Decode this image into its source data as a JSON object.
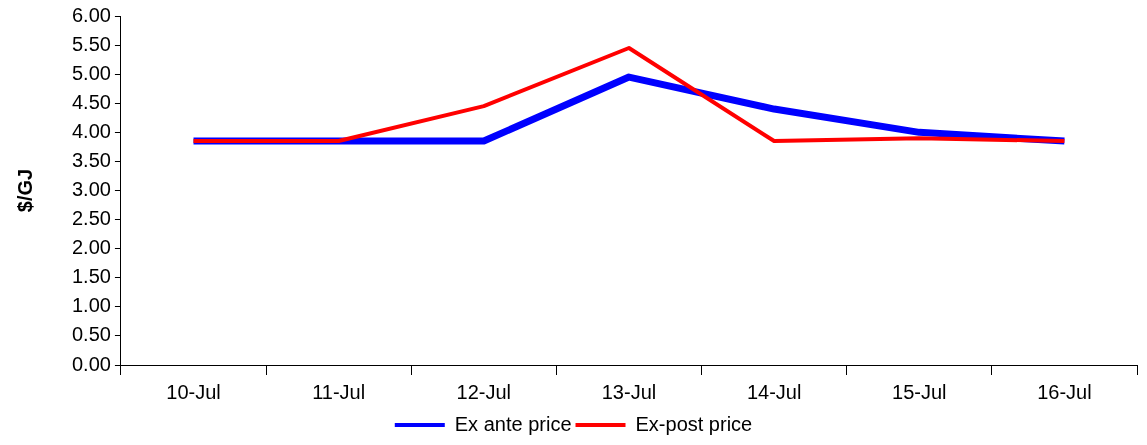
{
  "chart_data": {
    "type": "line",
    "ylabel": "$/GJ",
    "categories": [
      "10-Jul",
      "11-Jul",
      "12-Jul",
      "13-Jul",
      "14-Jul",
      "15-Jul",
      "16-Jul"
    ],
    "series": [
      {
        "name": "Ex ante price",
        "color": "#0000ff",
        "values": [
          3.85,
          3.85,
          3.85,
          4.95,
          4.4,
          4.0,
          3.85
        ]
      },
      {
        "name": "Ex-post price",
        "color": "#ff0000",
        "values": [
          3.85,
          3.85,
          4.45,
          5.45,
          3.85,
          3.9,
          3.85
        ]
      }
    ],
    "ylim": [
      0,
      6
    ],
    "yticks": [
      {
        "value": 0,
        "label": "0.00"
      },
      {
        "value": 0.5,
        "label": "0.50"
      },
      {
        "value": 1,
        "label": "1.00"
      },
      {
        "value": 1.5,
        "label": "1.50"
      },
      {
        "value": 2,
        "label": "2.00"
      },
      {
        "value": 2.5,
        "label": "2.50"
      },
      {
        "value": 3,
        "label": "3.00"
      },
      {
        "value": 3.5,
        "label": "3.50"
      },
      {
        "value": 4,
        "label": "4.00"
      },
      {
        "value": 4.5,
        "label": "4.50"
      },
      {
        "value": 5,
        "label": "5.00"
      },
      {
        "value": 5.5,
        "label": "5.50"
      },
      {
        "value": 6,
        "label": "6.00"
      }
    ],
    "grid": false,
    "legend": "bottom",
    "marker": "none",
    "line_style": "solid"
  }
}
